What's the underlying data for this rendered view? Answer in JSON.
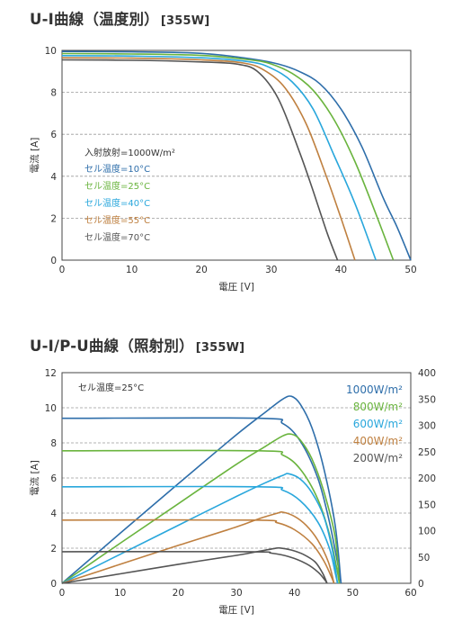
{
  "titles": {
    "chart1_main": "U-I曲線（温度別）",
    "chart1_unit": "[355W]",
    "chart2_main": "U-I/P-U曲線（照射別）",
    "chart2_unit": "[355W]"
  },
  "chart_data": [
    {
      "type": "line",
      "title": "U-I曲線（温度別）[355W]",
      "xlabel": "電圧 [V]",
      "ylabel": "電流 [A]",
      "xlim": [
        0,
        50
      ],
      "ylim": [
        0,
        10
      ],
      "xticks": [
        "0",
        "10",
        "20",
        "30",
        "40",
        "50"
      ],
      "yticks": [
        "0",
        "2",
        "4",
        "6",
        "8",
        "10"
      ],
      "grid": "horizontal dashed",
      "legend_header": "入射放射=1000W/m²",
      "series": [
        {
          "name": "セル温度=10°C",
          "color": "#2e6eaa",
          "x": [
            0,
            10,
            20,
            27,
            31,
            34,
            37,
            40,
            43,
            46,
            48,
            50
          ],
          "y": [
            9.95,
            9.93,
            9.86,
            9.6,
            9.35,
            9.0,
            8.4,
            7.2,
            5.4,
            3.0,
            1.6,
            0
          ]
        },
        {
          "name": "セル温度=25°C",
          "color": "#6ab43e",
          "x": [
            0,
            10,
            20,
            27,
            30,
            33,
            36,
            39,
            42,
            45,
            47.5
          ],
          "y": [
            9.85,
            9.83,
            9.76,
            9.55,
            9.35,
            8.9,
            8.1,
            6.7,
            4.7,
            2.2,
            0
          ]
        },
        {
          "name": "セル温度=40°C",
          "color": "#29a7dc",
          "x": [
            0,
            10,
            20,
            27,
            30,
            33,
            36,
            39,
            42,
            45
          ],
          "y": [
            9.75,
            9.73,
            9.65,
            9.45,
            9.15,
            8.5,
            7.2,
            5.0,
            2.7,
            0
          ]
        },
        {
          "name": "セル温度=55°C",
          "color": "#bf8040",
          "x": [
            0,
            10,
            20,
            26,
            29,
            32,
            35,
            38,
            40,
            42
          ],
          "y": [
            9.65,
            9.63,
            9.55,
            9.4,
            9.05,
            8.2,
            6.5,
            3.9,
            2.0,
            0
          ]
        },
        {
          "name": "セル温度=70°C",
          "color": "#555555",
          "x": [
            0,
            10,
            20,
            25,
            28,
            31,
            34,
            36,
            38,
            39.5
          ],
          "y": [
            9.55,
            9.53,
            9.45,
            9.35,
            9.0,
            7.7,
            5.2,
            3.3,
            1.3,
            0
          ]
        }
      ]
    },
    {
      "type": "line",
      "title": "U-I/P-U曲線（照射別）[355W]",
      "xlabel": "電圧 [V]",
      "ylabel": "電流 [A]",
      "xlim": [
        0,
        60
      ],
      "ylim": [
        0,
        12
      ],
      "y2lim": [
        0,
        400
      ],
      "xticks": [
        "0",
        "10",
        "20",
        "30",
        "40",
        "50",
        "60"
      ],
      "yticks": [
        "0",
        "2",
        "4",
        "6",
        "8",
        "10",
        "12"
      ],
      "y2ticks": [
        "0",
        "50",
        "100",
        "150",
        "200",
        "250",
        "300",
        "350",
        "400"
      ],
      "grid": "horizontal dashed",
      "annotation": "セル温度=25°C",
      "series": [
        {
          "name": "1000W/m²",
          "color": "#2e6eaa",
          "current": {
            "x": [
              0,
              34,
              38,
              41,
              44,
              46,
              47.5,
              48
            ],
            "y": [
              9.4,
              9.4,
              9.1,
              8.1,
              6.0,
              3.5,
              1.0,
              0
            ]
          },
          "power": {
            "x": [
              0,
              10,
              20,
              30,
              35,
              38,
              39.5,
              41,
              43,
              45,
              47,
              48
            ],
            "y": [
              0,
              95,
              189,
              282,
              325,
              350,
              355,
              340,
              295,
              220,
              110,
              0
            ]
          }
        },
        {
          "name": "800W/m²",
          "color": "#6ab43e",
          "current": {
            "x": [
              0,
              34,
              38,
              41,
              44,
              46,
              47.3,
              47.7
            ],
            "y": [
              7.55,
              7.55,
              7.3,
              6.5,
              4.8,
              2.8,
              0.8,
              0
            ]
          },
          "power": {
            "x": [
              0,
              10,
              20,
              30,
              35,
              38,
              39.5,
              41,
              43,
              45,
              47,
              47.7
            ],
            "y": [
              0,
              76,
              151,
              226,
              260,
              280,
              283,
              272,
              236,
              176,
              88,
              0
            ]
          }
        },
        {
          "name": "600W/m²",
          "color": "#29a7dc",
          "current": {
            "x": [
              0,
              34,
              38,
              41,
              44,
              46,
              47,
              47.4
            ],
            "y": [
              5.5,
              5.5,
              5.3,
              4.7,
              3.5,
              2.0,
              0.6,
              0
            ]
          },
          "power": {
            "x": [
              0,
              10,
              20,
              30,
              35,
              38,
              39,
              41,
              43,
              45,
              46.5,
              47.4
            ],
            "y": [
              0,
              55,
              110,
              165,
              191,
              205,
              208,
              198,
              172,
              128,
              64,
              0
            ]
          }
        },
        {
          "name": "400W/m²",
          "color": "#bf8040",
          "current": {
            "x": [
              0,
              33,
              37,
              40,
              43,
              45,
              46.3,
              46.8
            ],
            "y": [
              3.6,
              3.6,
              3.45,
              3.05,
              2.25,
              1.3,
              0.4,
              0
            ]
          },
          "power": {
            "x": [
              0,
              10,
              20,
              30,
              34,
              37,
              38,
              40,
              42,
              44,
              45.8,
              46.8
            ],
            "y": [
              0,
              36,
              72,
              107,
              123,
              133,
              135,
              127,
              110,
              82,
              41,
              0
            ]
          }
        },
        {
          "name": "200W/m²",
          "color": "#555555",
          "current": {
            "x": [
              0,
              32,
              36,
              39,
              42,
              44,
              45.2,
              45.6
            ],
            "y": [
              1.8,
              1.8,
              1.72,
              1.52,
              1.12,
              0.65,
              0.2,
              0
            ]
          },
          "power": {
            "x": [
              0,
              10,
              20,
              30,
              34,
              36.5,
              37.5,
              39.5,
              41.5,
              43.5,
              44.8,
              45.6
            ],
            "y": [
              0,
              18,
              36,
              53,
              61,
              66,
              67,
              63,
              55,
              41,
              20,
              0
            ]
          }
        }
      ]
    }
  ]
}
